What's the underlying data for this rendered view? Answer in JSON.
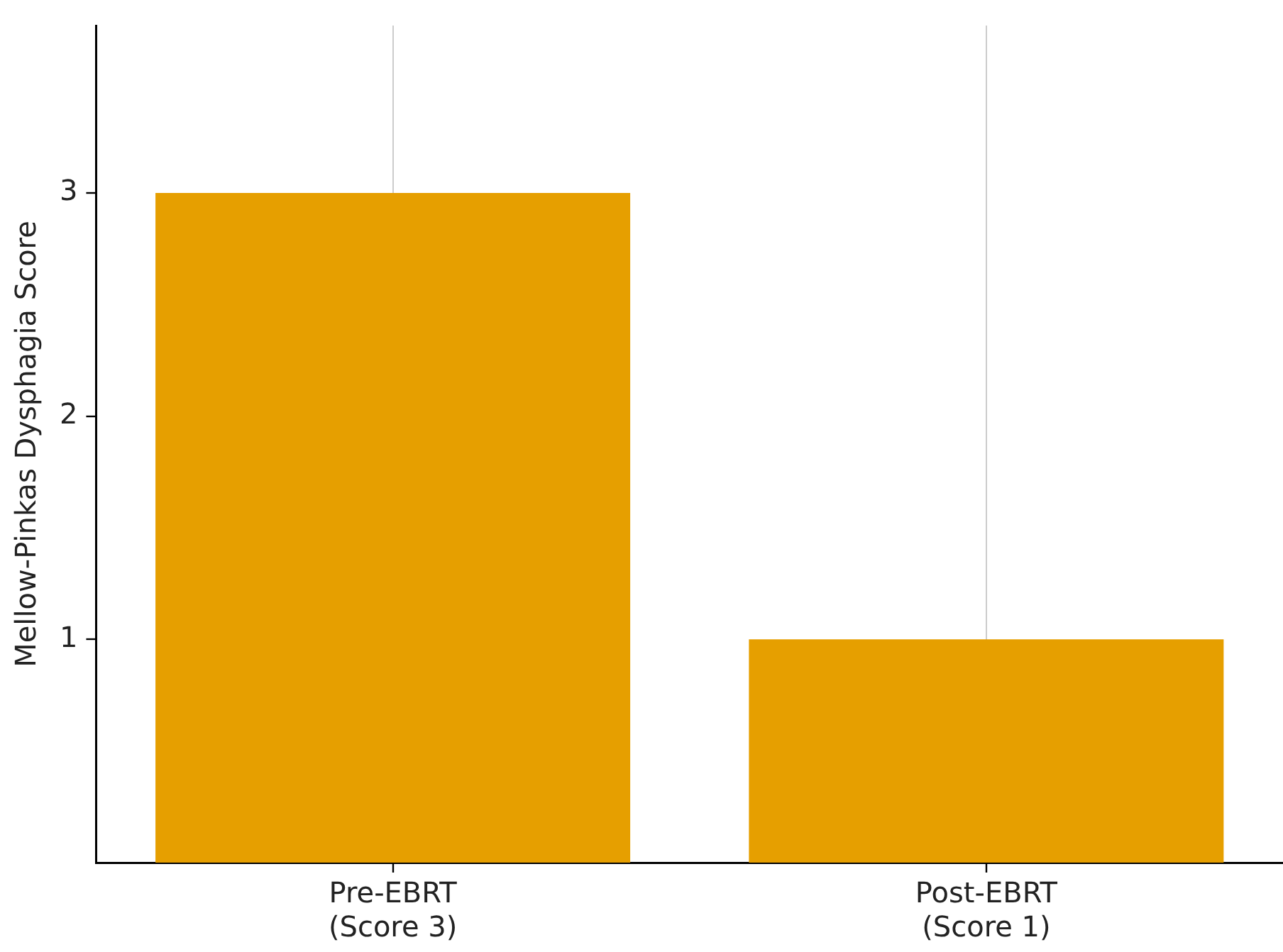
{
  "chart_data": {
    "type": "bar",
    "ylabel": "Mellow-Pinkas Dysphagia Score",
    "categories": [
      "Pre-EBRT\n(Score 3)",
      "Post-EBRT\n(Score 1)"
    ],
    "values": [
      3,
      1
    ],
    "color": "#e69f00",
    "ylim": [
      0,
      3.75
    ],
    "yticks": [
      1,
      2,
      3
    ],
    "grid": "x",
    "legend": false
  }
}
